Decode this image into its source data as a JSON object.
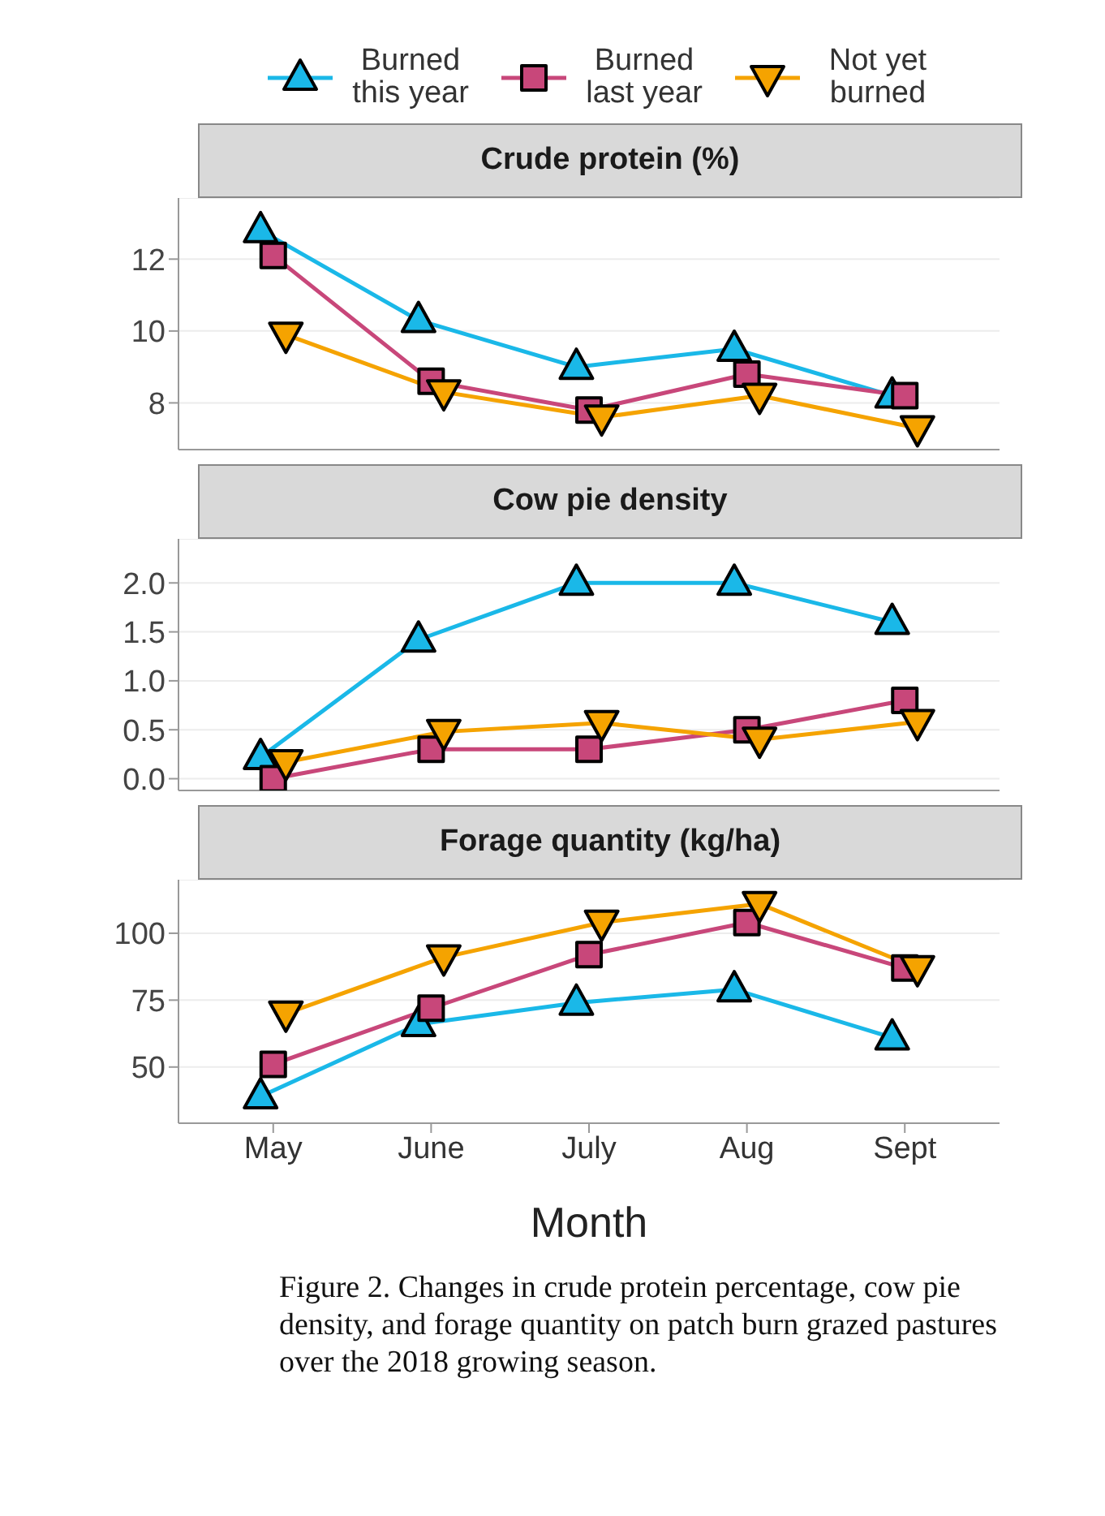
{
  "chart_data": [
    {
      "type": "line",
      "title": "Crude protein (%)",
      "categories": [
        null,
        null,
        null,
        null,
        null
      ],
      "ylim": [
        6.7,
        13.7
      ],
      "yticks": [
        8,
        10,
        12
      ],
      "grid": "y",
      "tick_labels": "y",
      "legend": "top",
      "series": [
        {
          "name": "Burned this year",
          "color": "#1ab8e8",
          "marker": "triangle",
          "values": [
            12.8,
            10.3,
            9.0,
            9.5,
            8.2
          ]
        },
        {
          "name": "Burned last year",
          "color": "#c8477a",
          "marker": "square",
          "values": [
            12.1,
            8.6,
            7.8,
            8.8,
            8.2
          ]
        },
        {
          "name": "Not yet burned",
          "color": "#f5a300",
          "marker": "triangle-down",
          "values": [
            9.9,
            8.3,
            7.6,
            8.2,
            7.3
          ]
        }
      ]
    },
    {
      "type": "line",
      "title": "Cow pie density",
      "categories": [
        null,
        null,
        null,
        null,
        null
      ],
      "ylim": [
        -0.12,
        2.45
      ],
      "yticks": [
        {
          "value": 0,
          "label": "0.0"
        },
        0.5,
        {
          "value": 1,
          "label": "1.0"
        },
        1.5,
        {
          "value": 2,
          "label": "2.0"
        }
      ],
      "grid": "y",
      "tick_labels": "y",
      "series": [
        {
          "color": "#1ab8e8",
          "marker": "triangle",
          "values": [
            0.22,
            1.42,
            2.0,
            2.0,
            1.6
          ]
        },
        {
          "color": "#c8477a",
          "marker": "square",
          "values": [
            0.0,
            0.3,
            0.3,
            0.5,
            0.8
          ]
        },
        {
          "color": "#f5a300",
          "marker": "triangle-down",
          "values": [
            0.17,
            0.48,
            0.57,
            0.4,
            0.58
          ]
        }
      ]
    },
    {
      "type": "line",
      "title": "Forage quantity (kg/ha)",
      "xlabel": "Month",
      "categories": [
        "May",
        "June",
        "July",
        "Aug",
        "Sept"
      ],
      "ylim": [
        29,
        120
      ],
      "yticks": [
        50,
        75,
        100
      ],
      "grid": "y",
      "annotations": [
        "Figure 2. Changes in crude protein percentage, cow pie density, and forage quantity on patch burn grazed pastures over the 2018 growing season."
      ],
      "series": [
        {
          "color": "#1ab8e8",
          "marker": "triangle",
          "values": [
            39,
            66,
            74,
            79,
            61
          ]
        },
        {
          "color": "#c8477a",
          "marker": "square",
          "values": [
            51,
            72,
            92,
            104,
            87
          ]
        },
        {
          "color": "#f5a300",
          "marker": "triangle-down",
          "values": [
            70,
            91,
            104,
            111,
            87
          ]
        }
      ]
    }
  ]
}
